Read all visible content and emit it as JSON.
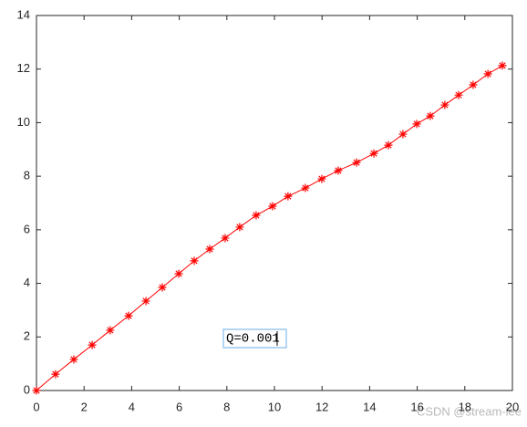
{
  "chart_data": {
    "type": "line",
    "x": [
      0,
      0.8,
      1.57,
      2.34,
      3.1,
      3.87,
      4.6,
      5.29,
      5.98,
      6.63,
      7.28,
      7.93,
      8.54,
      9.23,
      9.92,
      10.57,
      11.3,
      11.99,
      12.68,
      13.45,
      14.18,
      14.79,
      15.4,
      15.98,
      16.55,
      17.16,
      17.74,
      18.35,
      18.97,
      19.58
    ],
    "series": [
      {
        "color": "#ff0000",
        "marker": "asterisk",
        "values": [
          0,
          0.61,
          1.16,
          1.7,
          2.25,
          2.79,
          3.34,
          3.85,
          4.36,
          4.84,
          5.28,
          5.69,
          6.1,
          6.54,
          6.88,
          7.25,
          7.56,
          7.9,
          8.21,
          8.51,
          8.85,
          9.16,
          9.57,
          9.95,
          10.25,
          10.66,
          11.03,
          11.41,
          11.82,
          12.13
        ]
      }
    ],
    "xlim": [
      0,
      20
    ],
    "xticks": [
      0,
      2,
      4,
      6,
      8,
      10,
      12,
      14,
      16,
      18,
      20
    ],
    "ylim": [
      0,
      14
    ],
    "yticks": [
      0,
      2,
      4,
      6,
      8,
      10,
      12,
      14
    ],
    "grid": false,
    "annotation": "Q=0.001",
    "watermark": "CSDN @stream-lee"
  }
}
